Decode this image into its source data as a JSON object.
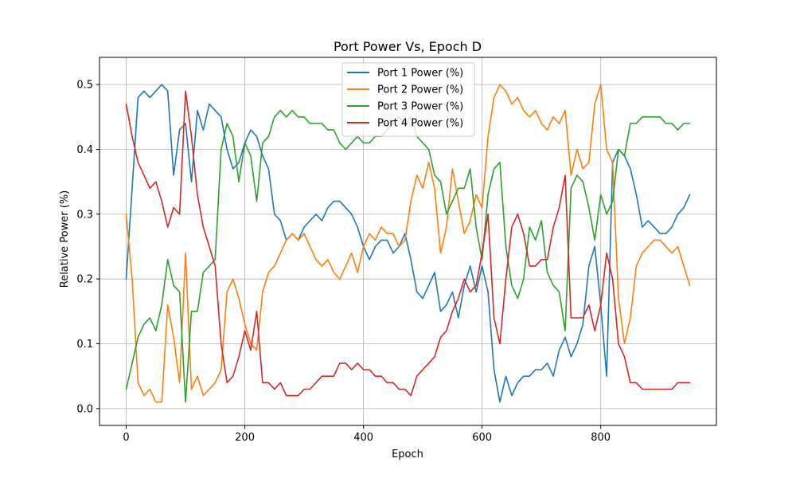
{
  "chart_data": {
    "type": "line",
    "title": "Port Power Vs, Epoch D",
    "xlabel": "Epoch",
    "ylabel": "Relative Power (%)",
    "xlim": [
      -45,
      995
    ],
    "ylim": [
      -0.026,
      0.542
    ],
    "xticks": [
      0,
      200,
      400,
      600,
      800
    ],
    "yticks": [
      0.0,
      0.1,
      0.2,
      0.3,
      0.4,
      0.5
    ],
    "xtick_labels": [
      "0",
      "200",
      "400",
      "600",
      "800"
    ],
    "ytick_labels": [
      "0.0",
      "0.1",
      "0.2",
      "0.3",
      "0.4",
      "0.5"
    ],
    "grid": true,
    "legend_position": "top-center",
    "x": [
      0,
      10,
      20,
      30,
      40,
      50,
      60,
      70,
      80,
      90,
      100,
      110,
      120,
      130,
      140,
      150,
      160,
      170,
      180,
      190,
      200,
      210,
      220,
      230,
      240,
      250,
      260,
      270,
      280,
      290,
      300,
      310,
      320,
      330,
      340,
      350,
      360,
      370,
      380,
      390,
      400,
      410,
      420,
      430,
      440,
      450,
      460,
      470,
      480,
      490,
      500,
      510,
      520,
      530,
      540,
      550,
      560,
      570,
      580,
      590,
      600,
      610,
      620,
      630,
      640,
      650,
      660,
      670,
      680,
      690,
      700,
      710,
      720,
      730,
      740,
      750,
      760,
      770,
      780,
      790,
      800,
      810,
      820,
      830,
      840,
      850,
      860,
      870,
      880,
      890,
      900,
      910,
      920,
      930,
      940,
      950
    ],
    "series": [
      {
        "name": "Port 1 Power (%)",
        "color": "#1f77b4",
        "values": [
          0.2,
          0.34,
          0.48,
          0.49,
          0.48,
          0.49,
          0.5,
          0.49,
          0.36,
          0.43,
          0.44,
          0.35,
          0.46,
          0.43,
          0.47,
          0.46,
          0.45,
          0.4,
          0.37,
          0.38,
          0.41,
          0.43,
          0.42,
          0.39,
          0.37,
          0.3,
          0.29,
          0.26,
          0.27,
          0.26,
          0.28,
          0.29,
          0.3,
          0.29,
          0.31,
          0.32,
          0.32,
          0.31,
          0.3,
          0.28,
          0.25,
          0.23,
          0.25,
          0.26,
          0.26,
          0.24,
          0.25,
          0.27,
          0.23,
          0.18,
          0.17,
          0.19,
          0.21,
          0.15,
          0.16,
          0.18,
          0.14,
          0.19,
          0.22,
          0.18,
          0.22,
          0.18,
          0.06,
          0.01,
          0.05,
          0.02,
          0.04,
          0.05,
          0.05,
          0.06,
          0.06,
          0.07,
          0.05,
          0.09,
          0.11,
          0.08,
          0.1,
          0.13,
          0.22,
          0.25,
          0.16,
          0.05,
          0.38,
          0.4,
          0.39,
          0.37,
          0.33,
          0.28,
          0.29,
          0.28,
          0.27,
          0.27,
          0.28,
          0.3,
          0.31,
          0.33
        ]
      },
      {
        "name": "Port 2 Power (%)",
        "color": "#ff7f0e",
        "values": [
          0.3,
          0.2,
          0.04,
          0.02,
          0.03,
          0.01,
          0.01,
          0.16,
          0.11,
          0.04,
          0.24,
          0.03,
          0.05,
          0.02,
          0.03,
          0.04,
          0.06,
          0.18,
          0.2,
          0.17,
          0.13,
          0.1,
          0.09,
          0.18,
          0.21,
          0.22,
          0.24,
          0.26,
          0.27,
          0.26,
          0.27,
          0.25,
          0.23,
          0.22,
          0.23,
          0.21,
          0.2,
          0.22,
          0.24,
          0.21,
          0.25,
          0.27,
          0.26,
          0.28,
          0.27,
          0.27,
          0.25,
          0.26,
          0.32,
          0.36,
          0.34,
          0.38,
          0.34,
          0.24,
          0.28,
          0.37,
          0.32,
          0.27,
          0.29,
          0.33,
          0.31,
          0.42,
          0.48,
          0.5,
          0.49,
          0.47,
          0.48,
          0.46,
          0.45,
          0.46,
          0.44,
          0.43,
          0.45,
          0.44,
          0.46,
          0.36,
          0.4,
          0.37,
          0.38,
          0.47,
          0.5,
          0.4,
          0.38,
          0.17,
          0.1,
          0.14,
          0.22,
          0.24,
          0.25,
          0.26,
          0.26,
          0.25,
          0.24,
          0.25,
          0.22,
          0.19
        ]
      },
      {
        "name": "Port 3 Power (%)",
        "color": "#2ca02c",
        "values": [
          0.03,
          0.07,
          0.11,
          0.13,
          0.14,
          0.12,
          0.16,
          0.23,
          0.19,
          0.18,
          0.01,
          0.15,
          0.15,
          0.21,
          0.22,
          0.23,
          0.4,
          0.44,
          0.42,
          0.35,
          0.41,
          0.39,
          0.32,
          0.41,
          0.42,
          0.45,
          0.46,
          0.45,
          0.46,
          0.45,
          0.45,
          0.44,
          0.44,
          0.44,
          0.43,
          0.43,
          0.41,
          0.4,
          0.41,
          0.42,
          0.41,
          0.41,
          0.42,
          0.42,
          0.43,
          0.44,
          0.45,
          0.44,
          0.45,
          0.42,
          0.41,
          0.4,
          0.36,
          0.35,
          0.3,
          0.32,
          0.34,
          0.34,
          0.37,
          0.28,
          0.23,
          0.33,
          0.37,
          0.38,
          0.25,
          0.19,
          0.17,
          0.2,
          0.28,
          0.26,
          0.29,
          0.21,
          0.19,
          0.18,
          0.12,
          0.34,
          0.36,
          0.35,
          0.31,
          0.26,
          0.33,
          0.3,
          0.32,
          0.4,
          0.39,
          0.44,
          0.44,
          0.45,
          0.45,
          0.45,
          0.45,
          0.44,
          0.44,
          0.43,
          0.44,
          0.44
        ]
      },
      {
        "name": "Port 4 Power (%)",
        "color": "#d62728",
        "values": [
          0.47,
          0.42,
          0.38,
          0.36,
          0.34,
          0.35,
          0.32,
          0.28,
          0.31,
          0.3,
          0.49,
          0.42,
          0.33,
          0.28,
          0.25,
          0.22,
          0.1,
          0.04,
          0.05,
          0.08,
          0.12,
          0.09,
          0.15,
          0.04,
          0.04,
          0.03,
          0.04,
          0.02,
          0.02,
          0.02,
          0.03,
          0.03,
          0.04,
          0.05,
          0.05,
          0.05,
          0.07,
          0.07,
          0.06,
          0.07,
          0.06,
          0.06,
          0.05,
          0.05,
          0.04,
          0.04,
          0.03,
          0.03,
          0.02,
          0.05,
          0.06,
          0.07,
          0.08,
          0.11,
          0.12,
          0.15,
          0.17,
          0.2,
          0.18,
          0.19,
          0.24,
          0.3,
          0.14,
          0.1,
          0.2,
          0.28,
          0.3,
          0.27,
          0.22,
          0.22,
          0.23,
          0.23,
          0.28,
          0.31,
          0.36,
          0.14,
          0.14,
          0.14,
          0.16,
          0.12,
          0.16,
          0.24,
          0.2,
          0.1,
          0.08,
          0.04,
          0.04,
          0.03,
          0.03,
          0.03,
          0.03,
          0.03,
          0.03,
          0.04,
          0.04,
          0.04
        ]
      }
    ]
  }
}
